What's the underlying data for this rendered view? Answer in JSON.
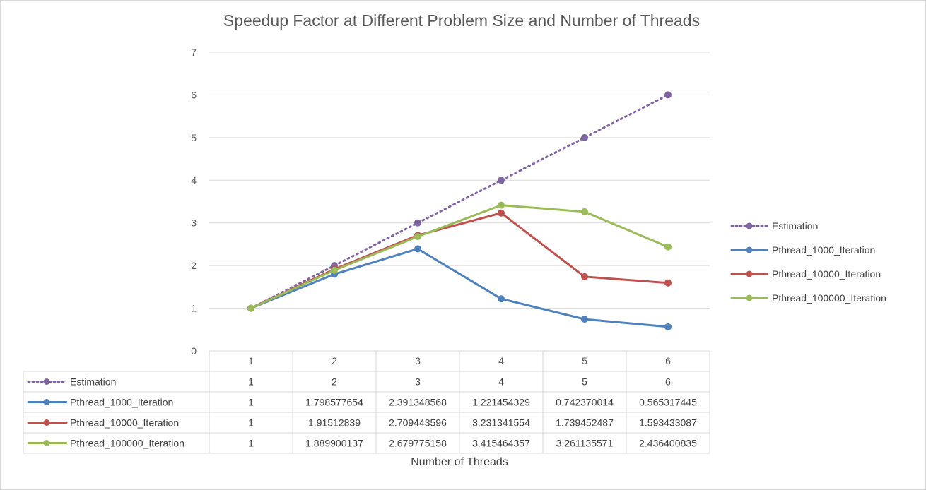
{
  "chart_data": {
    "type": "line",
    "title": "Speedup Factor at Different Problem Size and Number of Threads",
    "xlabel": "Number of Threads",
    "ylabel": "",
    "categories": [
      "1",
      "2",
      "3",
      "4",
      "5",
      "6"
    ],
    "ylim": [
      0,
      7
    ],
    "yticks": [
      "0",
      "1",
      "2",
      "3",
      "4",
      "5",
      "6",
      "7"
    ],
    "grid": true,
    "legend": "right",
    "data_table": true,
    "series": [
      {
        "name": "Estimation",
        "color": "#8064a2",
        "dashed": true,
        "values": [
          1,
          2,
          3,
          4,
          5,
          6
        ],
        "labels": [
          "1",
          "2",
          "3",
          "4",
          "5",
          "6"
        ]
      },
      {
        "name": "Pthread_1000_Iteration",
        "color": "#4f81bd",
        "dashed": false,
        "values": [
          1,
          1.798577654,
          2.391348568,
          1.221454329,
          0.742370014,
          0.565317445
        ],
        "labels": [
          "1",
          "1.798577654",
          "2.391348568",
          "1.221454329",
          "0.742370014",
          "0.565317445"
        ]
      },
      {
        "name": "Pthread_10000_Iteration",
        "color": "#c0504d",
        "dashed": false,
        "values": [
          1,
          1.91512839,
          2.709443596,
          3.231341554,
          1.739452487,
          1.593433087
        ],
        "labels": [
          "1",
          "1.91512839",
          "2.709443596",
          "3.231341554",
          "1.739452487",
          "1.593433087"
        ]
      },
      {
        "name": "Pthread_100000_Iteration",
        "color": "#9bbb59",
        "dashed": false,
        "values": [
          1,
          1.889900137,
          2.679775158,
          3.415464357,
          3.261135571,
          2.436400835
        ],
        "labels": [
          "1",
          "1.889900137",
          "2.679775158",
          "3.415464357",
          "3.261135571",
          "2.436400835"
        ]
      }
    ]
  }
}
